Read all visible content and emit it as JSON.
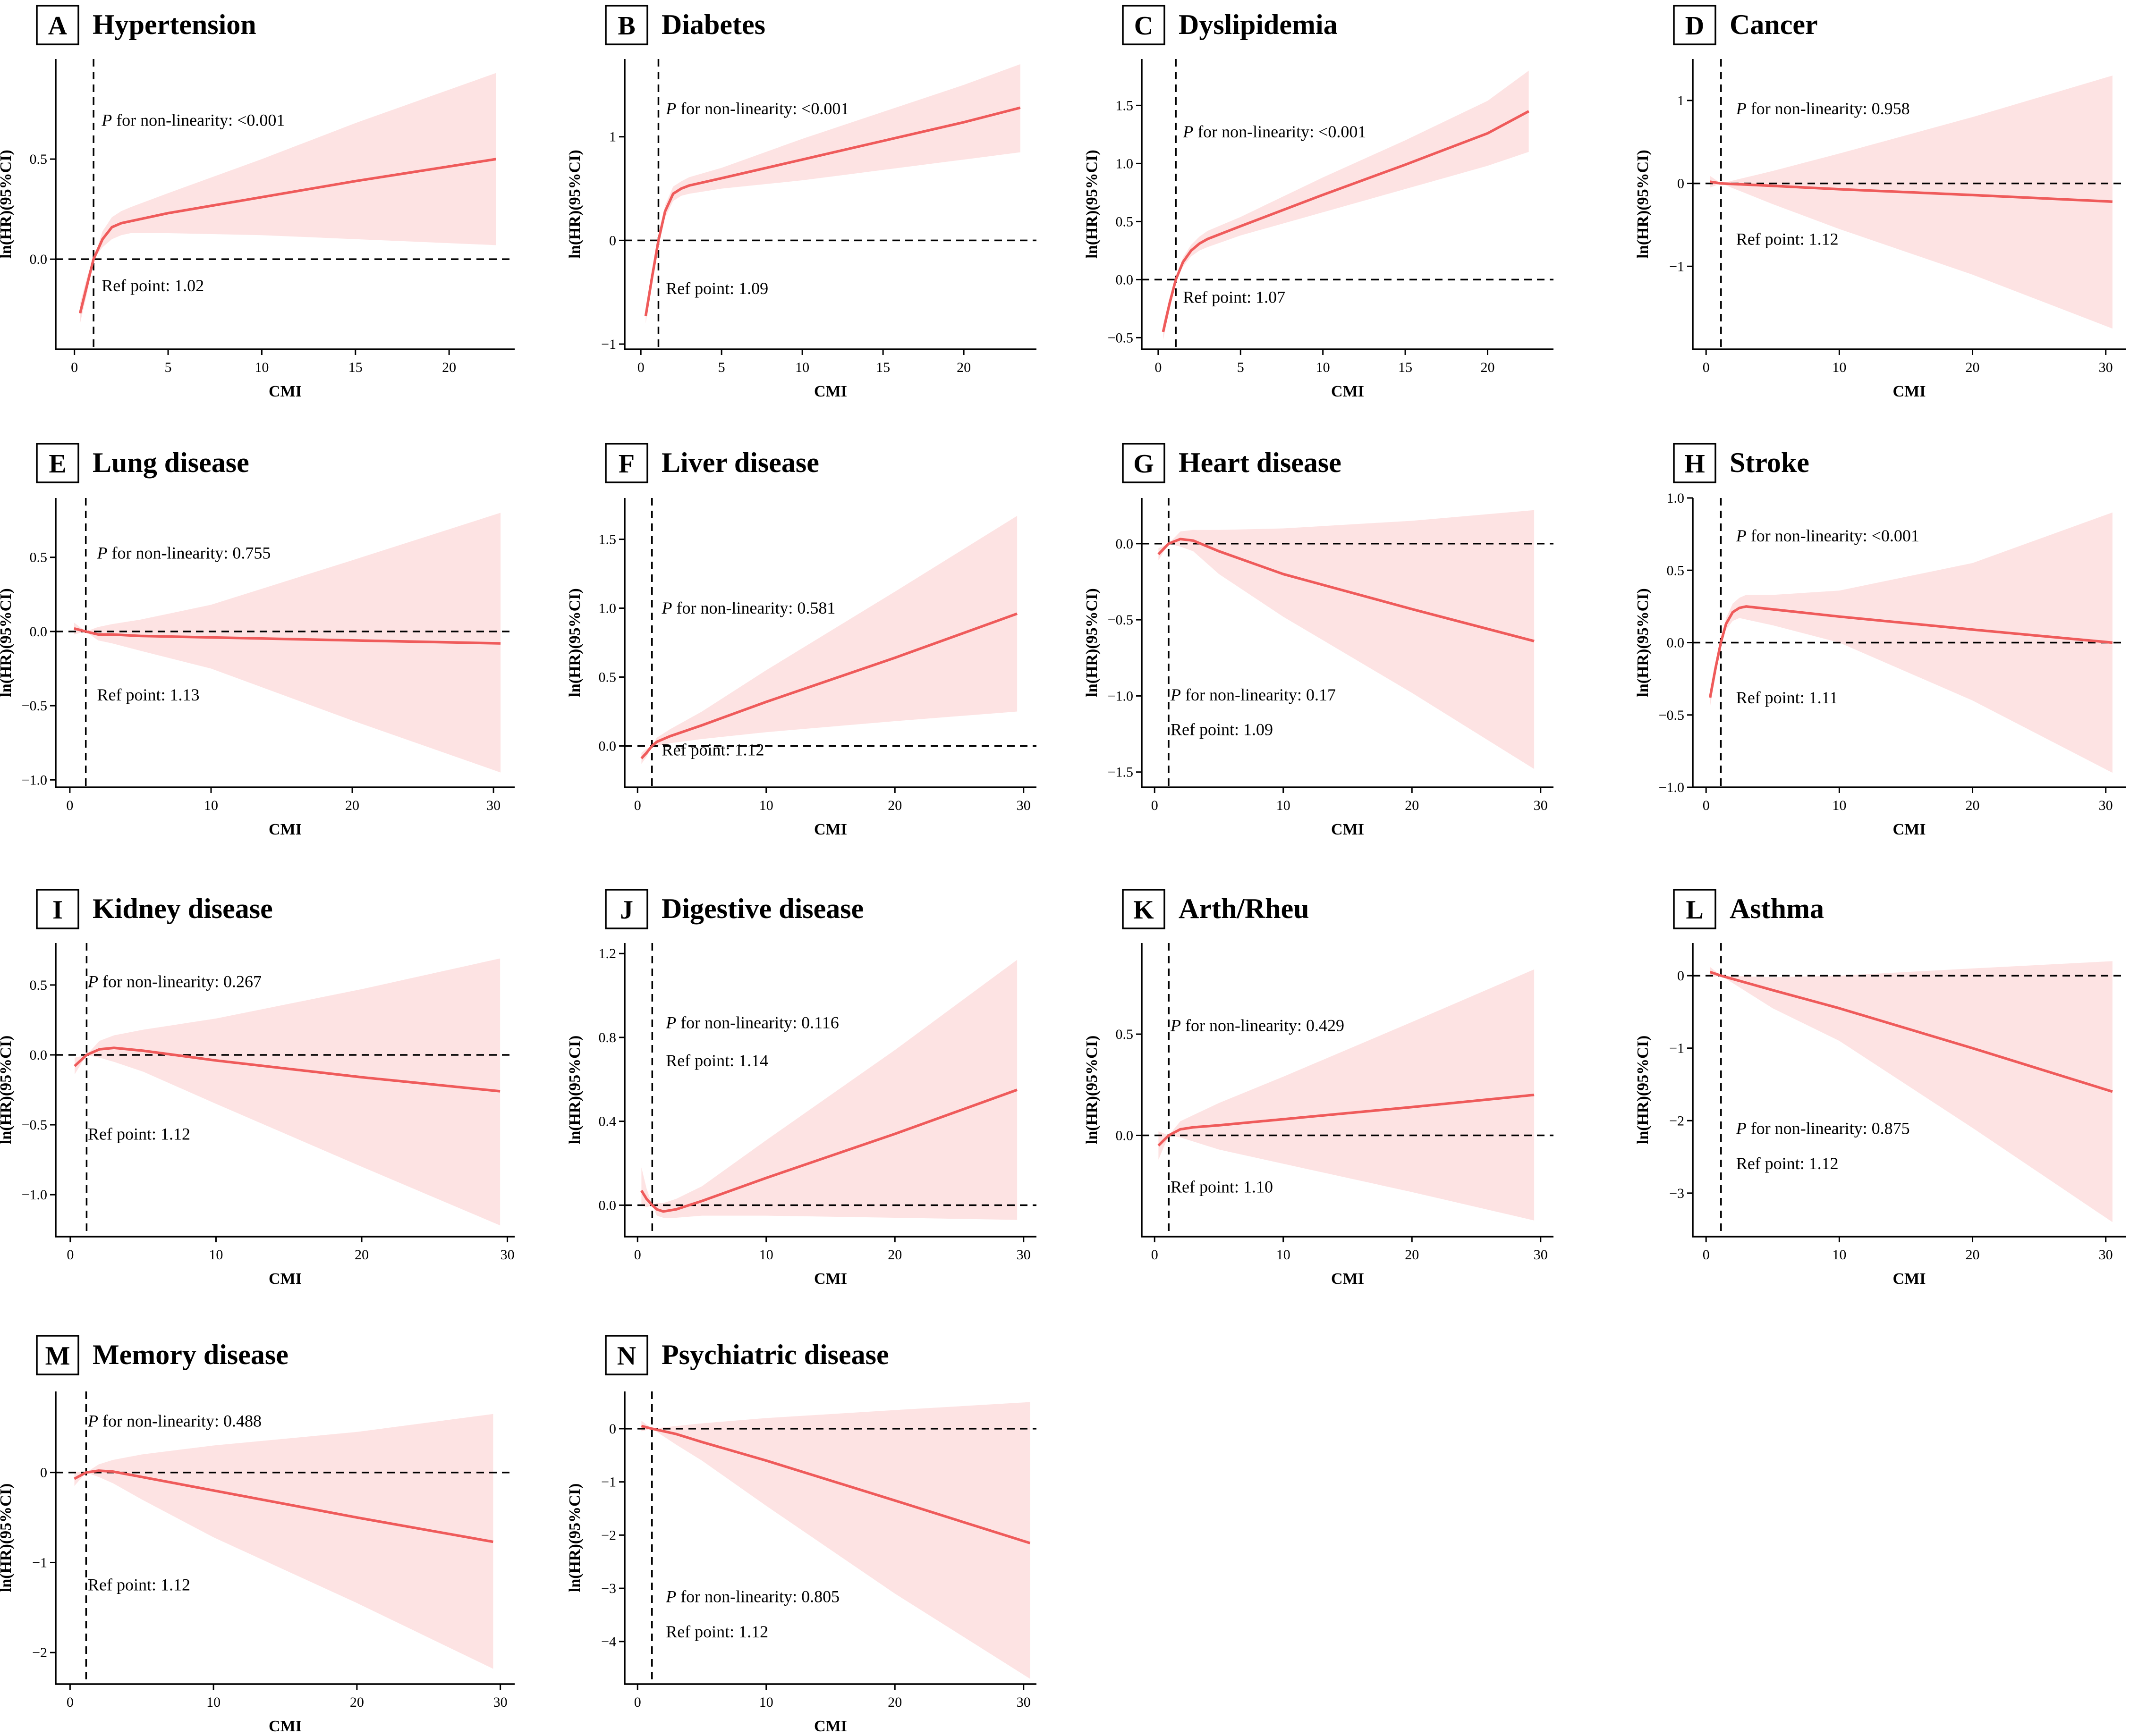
{
  "figure": {
    "x_axis_title": "CMI",
    "y_axis_title": "ln(HR)(95%CI)",
    "p_italic_label": "P",
    "p_prefix": " for non-linearity: ",
    "ref_prefix": "Ref point: ",
    "colors": {
      "curve": "#ef5b5b",
      "band": "#fde3e3",
      "ink": "#000000"
    }
  },
  "chart_data": [
    {
      "type": "line",
      "letter": "A",
      "title": "Hypertension",
      "p_value": "<0.001",
      "ref_point": "1.02",
      "xlim": [
        -1,
        23.5
      ],
      "ylim": [
        -0.45,
        1.0
      ],
      "xticks": [
        0,
        5,
        10,
        15,
        20
      ],
      "yticks": [
        0.0,
        0.5
      ],
      "ytick_decimals": 1,
      "series": [
        {
          "name": "ln(HR)",
          "x": [
            0.3,
            0.7,
            1.02,
            1.5,
            2,
            2.5,
            3,
            5,
            10,
            15,
            22.5
          ],
          "y": [
            -0.27,
            -0.12,
            0.0,
            0.1,
            0.16,
            0.18,
            0.19,
            0.23,
            0.31,
            0.39,
            0.5
          ],
          "lower": [
            -0.32,
            -0.16,
            0.0,
            0.06,
            0.1,
            0.12,
            0.13,
            0.13,
            0.12,
            0.1,
            0.07
          ],
          "upper": [
            -0.22,
            -0.08,
            0.0,
            0.14,
            0.21,
            0.24,
            0.26,
            0.33,
            0.5,
            0.68,
            0.93
          ]
        }
      ]
    },
    {
      "type": "line",
      "letter": "B",
      "title": "Diabetes",
      "p_value": "<0.001",
      "ref_point": "1.09",
      "xlim": [
        -1,
        24.5
      ],
      "ylim": [
        -1.05,
        1.75
      ],
      "xticks": [
        0,
        5,
        10,
        15,
        20
      ],
      "yticks": [
        -1,
        0,
        1
      ],
      "ytick_decimals": 0,
      "series": [
        {
          "name": "ln(HR)",
          "x": [
            0.3,
            0.7,
            1.09,
            1.5,
            2,
            2.5,
            3,
            5,
            10,
            15,
            20,
            23.5
          ],
          "y": [
            -0.73,
            -0.35,
            0.0,
            0.28,
            0.45,
            0.5,
            0.53,
            0.6,
            0.78,
            0.96,
            1.14,
            1.28
          ],
          "lower": [
            -0.8,
            -0.41,
            0.0,
            0.22,
            0.38,
            0.43,
            0.45,
            0.5,
            0.58,
            0.68,
            0.78,
            0.85
          ],
          "upper": [
            -0.66,
            -0.29,
            0.0,
            0.34,
            0.52,
            0.57,
            0.61,
            0.7,
            0.98,
            1.24,
            1.5,
            1.7
          ]
        }
      ]
    },
    {
      "type": "line",
      "letter": "C",
      "title": "Dyslipidemia",
      "p_value": "<0.001",
      "ref_point": "1.07",
      "xlim": [
        -1,
        24
      ],
      "ylim": [
        -0.6,
        1.9
      ],
      "xticks": [
        0,
        5,
        10,
        15,
        20
      ],
      "yticks": [
        -0.5,
        0.0,
        0.5,
        1.0,
        1.5
      ],
      "ytick_decimals": 1,
      "series": [
        {
          "name": "ln(HR)",
          "x": [
            0.3,
            0.7,
            1.07,
            1.5,
            2,
            2.5,
            3,
            5,
            10,
            15,
            20,
            22.5
          ],
          "y": [
            -0.45,
            -0.2,
            0.0,
            0.15,
            0.25,
            0.31,
            0.35,
            0.46,
            0.73,
            0.99,
            1.26,
            1.45
          ],
          "lower": [
            -0.52,
            -0.25,
            0.0,
            0.11,
            0.2,
            0.25,
            0.28,
            0.38,
            0.58,
            0.78,
            0.98,
            1.1
          ],
          "upper": [
            -0.38,
            -0.15,
            0.0,
            0.19,
            0.3,
            0.37,
            0.42,
            0.54,
            0.88,
            1.2,
            1.54,
            1.8
          ]
        }
      ]
    },
    {
      "type": "line",
      "letter": "D",
      "title": "Cancer",
      "p_value": "0.958",
      "ref_point": "1.12",
      "xlim": [
        -1,
        31.5
      ],
      "ylim": [
        -2.0,
        1.5
      ],
      "xticks": [
        0,
        10,
        20,
        30
      ],
      "yticks": [
        -1,
        0,
        1
      ],
      "ytick_decimals": 0,
      "series": [
        {
          "name": "ln(HR)",
          "x": [
            0.3,
            1.12,
            5,
            10,
            20,
            30.5
          ],
          "y": [
            0.02,
            0.0,
            -0.03,
            -0.07,
            -0.14,
            -0.22
          ],
          "lower": [
            -0.05,
            0.0,
            -0.25,
            -0.55,
            -1.1,
            -1.75
          ],
          "upper": [
            0.09,
            0.0,
            0.15,
            0.36,
            0.8,
            1.3
          ]
        }
      ]
    },
    {
      "type": "line",
      "letter": "E",
      "title": "Lung disease",
      "p_value": "0.755",
      "ref_point": "1.13",
      "xlim": [
        -1,
        31.5
      ],
      "ylim": [
        -1.05,
        0.9
      ],
      "xticks": [
        0,
        10,
        20,
        30
      ],
      "yticks": [
        -1.0,
        -0.5,
        0.0,
        0.5
      ],
      "ytick_decimals": 1,
      "series": [
        {
          "name": "ln(HR)",
          "x": [
            0.3,
            1.13,
            2,
            3,
            5,
            10,
            20,
            30.5
          ],
          "y": [
            0.02,
            0.0,
            -0.02,
            -0.02,
            -0.03,
            -0.04,
            -0.06,
            -0.08
          ],
          "lower": [
            -0.02,
            0.0,
            -0.06,
            -0.08,
            -0.13,
            -0.25,
            -0.6,
            -0.95
          ],
          "upper": [
            0.06,
            0.0,
            0.03,
            0.05,
            0.08,
            0.18,
            0.48,
            0.8
          ]
        }
      ]
    },
    {
      "type": "line",
      "letter": "F",
      "title": "Liver disease",
      "p_value": "0.581",
      "ref_point": "1.12",
      "xlim": [
        -1,
        31
      ],
      "ylim": [
        -0.3,
        1.8
      ],
      "xticks": [
        0,
        10,
        20,
        30
      ],
      "yticks": [
        0.0,
        0.5,
        1.0,
        1.5
      ],
      "ytick_decimals": 1,
      "series": [
        {
          "name": "ln(HR)",
          "x": [
            0.3,
            0.7,
            1.12,
            1.5,
            2.5,
            5,
            10,
            20,
            29.5
          ],
          "y": [
            -0.09,
            -0.05,
            0.0,
            0.03,
            0.07,
            0.15,
            0.32,
            0.64,
            0.96
          ],
          "lower": [
            -0.13,
            -0.08,
            0.0,
            0.0,
            0.02,
            0.05,
            0.1,
            0.18,
            0.25
          ],
          "upper": [
            -0.05,
            -0.02,
            0.0,
            0.06,
            0.12,
            0.25,
            0.55,
            1.12,
            1.67
          ]
        }
      ]
    },
    {
      "type": "line",
      "letter": "G",
      "title": "Heart disease",
      "p_value": "0.17",
      "ref_point": "1.09",
      "xlim": [
        -1,
        31
      ],
      "ylim": [
        -1.6,
        0.3
      ],
      "xticks": [
        0,
        10,
        20,
        30
      ],
      "yticks": [
        -1.5,
        -1.0,
        -0.5,
        0.0
      ],
      "ytick_decimals": 1,
      "series": [
        {
          "name": "ln(HR)",
          "x": [
            0.3,
            1.09,
            2,
            3,
            5,
            10,
            20,
            29.5
          ],
          "y": [
            -0.07,
            0.0,
            0.03,
            0.02,
            -0.05,
            -0.2,
            -0.43,
            -0.64
          ],
          "lower": [
            -0.11,
            0.0,
            -0.02,
            -0.05,
            -0.2,
            -0.48,
            -0.98,
            -1.48
          ],
          "upper": [
            -0.03,
            0.0,
            0.08,
            0.09,
            0.09,
            0.1,
            0.15,
            0.22
          ]
        }
      ]
    },
    {
      "type": "line",
      "letter": "H",
      "title": "Stroke",
      "p_value": "<0.001",
      "ref_point": "1.11",
      "xlim": [
        -1,
        31.5
      ],
      "ylim": [
        -1.0,
        1.0
      ],
      "xticks": [
        0,
        10,
        20,
        30
      ],
      "yticks": [
        -1.0,
        -0.5,
        0.0,
        0.5,
        1.0
      ],
      "ytick_decimals": 1,
      "series": [
        {
          "name": "ln(HR)",
          "x": [
            0.3,
            0.7,
            1.11,
            1.5,
            2,
            2.5,
            3,
            5,
            10,
            20,
            30.5
          ],
          "y": [
            -0.38,
            -0.18,
            0.0,
            0.13,
            0.21,
            0.24,
            0.25,
            0.23,
            0.18,
            0.09,
            0.0
          ],
          "lower": [
            -0.44,
            -0.22,
            0.0,
            0.09,
            0.15,
            0.17,
            0.16,
            0.12,
            0.0,
            -0.4,
            -0.9
          ],
          "upper": [
            -0.32,
            -0.14,
            0.0,
            0.17,
            0.27,
            0.31,
            0.33,
            0.33,
            0.36,
            0.55,
            0.9
          ]
        }
      ]
    },
    {
      "type": "line",
      "letter": "I",
      "title": "Kidney disease",
      "p_value": "0.267",
      "ref_point": "1.12",
      "xlim": [
        -1,
        30.5
      ],
      "ylim": [
        -1.3,
        0.8
      ],
      "xticks": [
        0,
        10,
        20,
        30
      ],
      "yticks": [
        -1.0,
        -0.5,
        0.0,
        0.5
      ],
      "ytick_decimals": 1,
      "series": [
        {
          "name": "ln(HR)",
          "x": [
            0.3,
            1.12,
            2,
            3,
            5,
            10,
            20,
            29.5
          ],
          "y": [
            -0.08,
            0.0,
            0.04,
            0.05,
            0.03,
            -0.04,
            -0.16,
            -0.26
          ],
          "lower": [
            -0.14,
            0.0,
            -0.02,
            -0.05,
            -0.12,
            -0.35,
            -0.8,
            -1.22
          ],
          "upper": [
            -0.02,
            0.0,
            0.1,
            0.14,
            0.18,
            0.26,
            0.47,
            0.69
          ]
        }
      ]
    },
    {
      "type": "line",
      "letter": "J",
      "title": "Digestive disease",
      "p_value": "0.116",
      "ref_point": "1.14",
      "xlim": [
        -1,
        31
      ],
      "ylim": [
        -0.15,
        1.25
      ],
      "xticks": [
        0,
        10,
        20,
        30
      ],
      "yticks": [
        0.0,
        0.4,
        0.8,
        1.2
      ],
      "ytick_decimals": 1,
      "series": [
        {
          "name": "ln(HR)",
          "x": [
            0.3,
            0.7,
            1.14,
            1.5,
            2,
            3,
            5,
            10,
            20,
            29.5
          ],
          "y": [
            0.07,
            0.03,
            0.0,
            -0.02,
            -0.03,
            -0.02,
            0.02,
            0.13,
            0.34,
            0.55
          ],
          "lower": [
            0.0,
            -0.01,
            0.0,
            -0.05,
            -0.06,
            -0.06,
            -0.05,
            -0.05,
            -0.06,
            -0.07
          ],
          "upper": [
            0.18,
            0.08,
            0.0,
            0.01,
            0.01,
            0.03,
            0.09,
            0.31,
            0.74,
            1.17
          ]
        }
      ]
    },
    {
      "type": "line",
      "letter": "K",
      "title": "Arth/Rheu",
      "p_value": "0.429",
      "ref_point": "1.10",
      "xlim": [
        -1,
        31
      ],
      "ylim": [
        -0.5,
        0.95
      ],
      "xticks": [
        0,
        10,
        20,
        30
      ],
      "yticks": [
        0.0,
        0.5
      ],
      "ytick_decimals": 1,
      "series": [
        {
          "name": "ln(HR)",
          "x": [
            0.3,
            1.1,
            2,
            3,
            5,
            10,
            20,
            29.5
          ],
          "y": [
            -0.05,
            0.0,
            0.03,
            0.04,
            0.05,
            0.08,
            0.14,
            0.2
          ],
          "lower": [
            -0.12,
            0.0,
            -0.01,
            -0.03,
            -0.07,
            -0.14,
            -0.28,
            -0.42
          ],
          "upper": [
            0.02,
            0.0,
            0.07,
            0.1,
            0.16,
            0.29,
            0.56,
            0.82
          ]
        }
      ]
    },
    {
      "type": "line",
      "letter": "L",
      "title": "Asthma",
      "p_value": "0.875",
      "ref_point": "1.12",
      "xlim": [
        -1,
        31.5
      ],
      "ylim": [
        -3.6,
        0.45
      ],
      "xticks": [
        0,
        10,
        20,
        30
      ],
      "yticks": [
        -3,
        -2,
        -1,
        0
      ],
      "ytick_decimals": 0,
      "series": [
        {
          "name": "ln(HR)",
          "x": [
            0.3,
            1.12,
            5,
            10,
            20,
            30.5
          ],
          "y": [
            0.05,
            0.0,
            -0.2,
            -0.45,
            -1.0,
            -1.6
          ],
          "lower": [
            -0.02,
            0.0,
            -0.45,
            -0.9,
            -2.1,
            -3.4
          ],
          "upper": [
            0.12,
            0.0,
            -0.02,
            0.0,
            0.1,
            0.2
          ]
        }
      ]
    },
    {
      "type": "line",
      "letter": "M",
      "title": "Memory disease",
      "p_value": "0.488",
      "ref_point": "1.12",
      "xlim": [
        -1,
        31
      ],
      "ylim": [
        -2.35,
        0.9
      ],
      "xticks": [
        0,
        10,
        20,
        30
      ],
      "yticks": [
        -2,
        -1,
        0
      ],
      "ytick_decimals": 0,
      "series": [
        {
          "name": "ln(HR)",
          "x": [
            0.3,
            1.12,
            2,
            3,
            5,
            10,
            20,
            29.5
          ],
          "y": [
            -0.07,
            0.0,
            0.02,
            0.01,
            -0.05,
            -0.2,
            -0.5,
            -0.77
          ],
          "lower": [
            -0.15,
            0.0,
            -0.05,
            -0.12,
            -0.3,
            -0.72,
            -1.45,
            -2.18
          ],
          "upper": [
            0.01,
            0.0,
            0.09,
            0.14,
            0.2,
            0.3,
            0.45,
            0.65
          ]
        }
      ]
    },
    {
      "type": "line",
      "letter": "N",
      "title": "Psychiatric disease",
      "p_value": "0.805",
      "ref_point": "1.12",
      "xlim": [
        -1,
        31
      ],
      "ylim": [
        -4.8,
        0.7
      ],
      "xticks": [
        0,
        10,
        20,
        30
      ],
      "yticks": [
        -4,
        -3,
        -2,
        -1,
        0
      ],
      "ytick_decimals": 0,
      "series": [
        {
          "name": "ln(HR)",
          "x": [
            0.3,
            1.12,
            3,
            5,
            10,
            20,
            30.5
          ],
          "y": [
            0.05,
            0.0,
            -0.1,
            -0.25,
            -0.6,
            -1.35,
            -2.15
          ],
          "lower": [
            -0.05,
            0.0,
            -0.3,
            -0.6,
            -1.45,
            -3.1,
            -4.7
          ],
          "upper": [
            0.15,
            0.0,
            0.05,
            0.1,
            0.2,
            0.35,
            0.5
          ]
        }
      ]
    }
  ]
}
